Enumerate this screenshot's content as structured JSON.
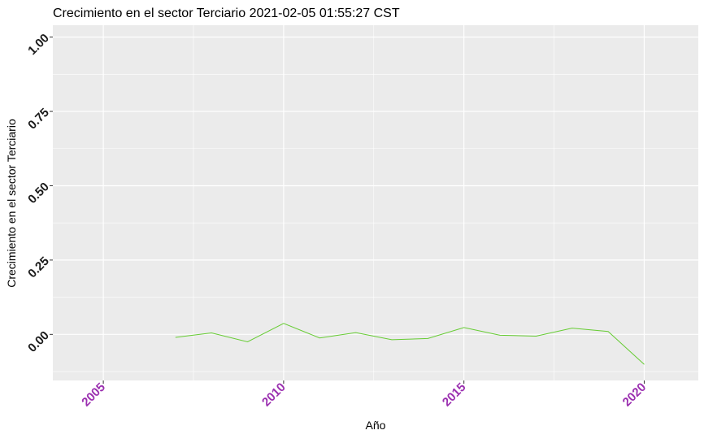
{
  "chart_data": {
    "type": "line",
    "title": "Crecimiento en el sector Terciario 2021-02-05 01:55:27 CST",
    "xlabel": "Año",
    "ylabel": "Crecimiento en el sector Terciario",
    "xlim": [
      2003.6,
      2021.5
    ],
    "ylim": [
      -0.155,
      1.04
    ],
    "x_ticks": [
      2005,
      2010,
      2015,
      2020
    ],
    "x_tick_labels": [
      "2005",
      "2010",
      "2015",
      "2020"
    ],
    "x_minor_ticks": [
      2007.5,
      2012.5,
      2017.5
    ],
    "y_ticks": [
      0,
      0.25,
      0.5,
      0.75,
      1.0
    ],
    "y_tick_labels": [
      "0.00",
      "0.25",
      "0.50",
      "0.75",
      "1.00"
    ],
    "grid": true,
    "legend": "none",
    "colors": {
      "panel": "#ebebeb",
      "grid": "#ffffff",
      "line": "#66cc33",
      "x_tick_text": "#9b30b0",
      "y_tick_text": "#1a1a1a"
    },
    "series": [
      {
        "x": [
          2007,
          2008,
          2009,
          2010,
          2011,
          2012,
          2013,
          2014,
          2015,
          2016,
          2017,
          2018,
          2019,
          2020
        ],
        "values": [
          -0.01,
          0.005,
          -0.025,
          0.037,
          -0.012,
          0.006,
          -0.018,
          -0.014,
          0.023,
          -0.003,
          -0.006,
          0.021,
          0.01,
          -0.101
        ]
      }
    ]
  }
}
